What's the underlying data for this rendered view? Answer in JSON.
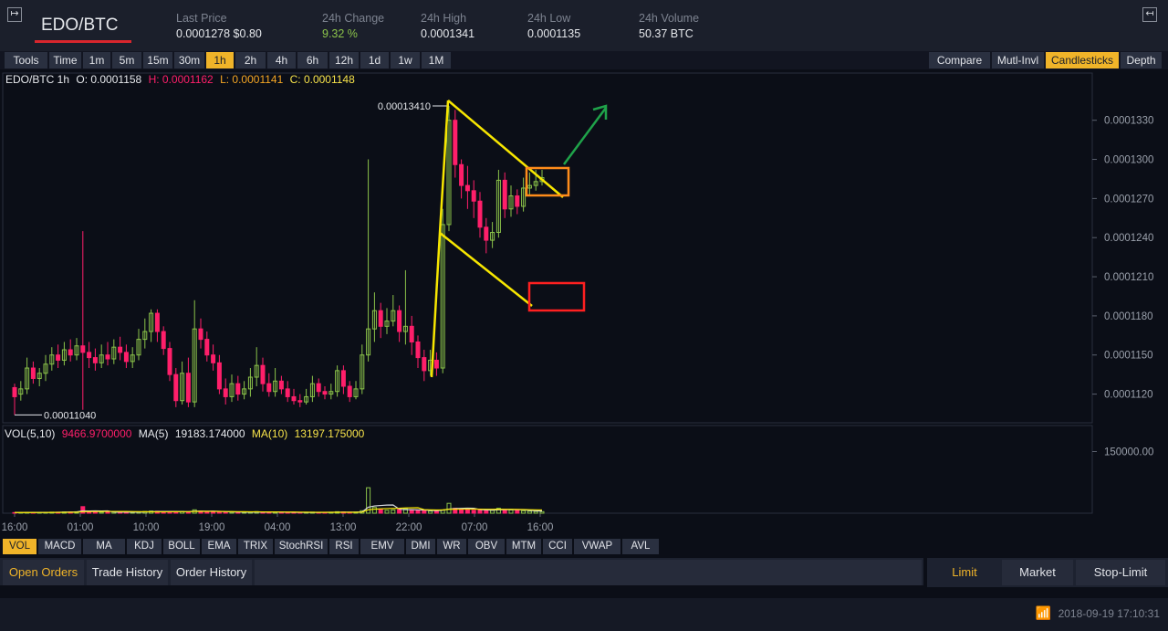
{
  "header": {
    "pair": "EDO/BTC",
    "stats": [
      {
        "label": "Last Price",
        "value": "0.0001278 $0.80"
      },
      {
        "label": "24h Change",
        "value": "9.32 %"
      },
      {
        "label": "24h High",
        "value": "0.0001341"
      },
      {
        "label": "24h Low",
        "value": "0.0001135"
      },
      {
        "label": "24h Volume",
        "value": "50.37 BTC"
      }
    ],
    "expand_icon": "expand-right-icon",
    "collapse_icon": "collapse-left-icon"
  },
  "toolbar": {
    "tools": "Tools",
    "intervals": [
      "Time",
      "1m",
      "5m",
      "15m",
      "30m",
      "1h",
      "2h",
      "4h",
      "6h",
      "12h",
      "1d",
      "1w",
      "1M"
    ],
    "active_interval": "1h",
    "views": [
      "Compare",
      "Mutl-Invl",
      "Candlesticks",
      "Depth"
    ],
    "active_view": "Candlesticks"
  },
  "ohlc": {
    "symbol": "EDO/BTC 1h",
    "open": "O: 0.0001158",
    "high": "H: 0.0001162",
    "low": "L: 0.0001141",
    "close": "C: 0.0001148"
  },
  "volume_legend": {
    "label": "VOL(5,10)",
    "vol": "9466.9700000",
    "ma5_label": "MA(5)",
    "ma5": "19183.174000",
    "ma10_label": "MA(10)",
    "ma10": "13197.175000"
  },
  "indicators": [
    "VOL",
    "MACD",
    "MA",
    "KDJ",
    "BOLL",
    "EMA",
    "TRIX",
    "StochRSI",
    "RSI",
    "EMV",
    "DMI",
    "WR",
    "OBV",
    "MTM",
    "CCI",
    "VWAP",
    "AVL"
  ],
  "active_indicator": "VOL",
  "orders": {
    "tabs": [
      "Open Orders",
      "Trade History",
      "Order History"
    ],
    "active": "Open Orders"
  },
  "order_form": {
    "tabs": [
      "Limit",
      "Market",
      "Stop-Limit"
    ],
    "active": "Limit"
  },
  "status": {
    "datetime": "2018-09-19 17:10:31",
    "wifi_icon": "wifi-icon"
  },
  "colors": {
    "up": "#8bc34a",
    "down": "#ff1f6a",
    "accent": "#f0b429",
    "annotation_yellow": "#f7e600",
    "annotation_orange": "#ff8c1a",
    "annotation_red": "#ff2020",
    "annotation_green": "#1fa34a"
  },
  "chart_data": {
    "type": "candlestick",
    "x_ticks": [
      "16:00",
      "01:00",
      "10:00",
      "19:00",
      "04:00",
      "13:00",
      "22:00",
      "07:00",
      "16:00"
    ],
    "y_ticks": [
      "0.0001330",
      "0.0001300",
      "0.0001270",
      "0.0001240",
      "0.0001210",
      "0.0001180",
      "0.0001150",
      "0.0001120"
    ],
    "ylim": [
      0.0001098,
      0.0001355
    ],
    "vol_ticks": [
      "150000.00"
    ],
    "vol_max": 200000,
    "annotations": {
      "high_label": "0.00013410",
      "low_label": "0.00011040"
    },
    "candles": [
      [
        0.0001125,
        0.0001118,
        0.0001128,
        0.0001104
      ],
      [
        0.000112,
        0.0001124,
        0.000113,
        0.0001115
      ],
      [
        0.0001124,
        0.000114,
        0.0001148,
        0.000112
      ],
      [
        0.000114,
        0.0001132,
        0.0001145,
        0.0001128
      ],
      [
        0.0001132,
        0.0001136,
        0.000114,
        0.0001126
      ],
      [
        0.0001136,
        0.0001143,
        0.000115,
        0.000113
      ],
      [
        0.0001143,
        0.000115,
        0.0001156,
        0.0001138
      ],
      [
        0.000115,
        0.0001146,
        0.0001158,
        0.000114
      ],
      [
        0.0001146,
        0.0001154,
        0.000116,
        0.0001142
      ],
      [
        0.0001154,
        0.000115,
        0.0001162,
        0.0001145
      ],
      [
        0.000115,
        0.0001157,
        0.0001163,
        0.0001146
      ],
      [
        0.0001157,
        0.0001152,
        0.0001245,
        0.0001108
      ],
      [
        0.0001152,
        0.0001148,
        0.000116,
        0.000114
      ],
      [
        0.0001148,
        0.0001144,
        0.0001155,
        0.0001138
      ],
      [
        0.0001144,
        0.000115,
        0.0001158,
        0.000114
      ],
      [
        0.000115,
        0.0001147,
        0.000116,
        0.0001142
      ],
      [
        0.0001147,
        0.0001156,
        0.0001162,
        0.0001143
      ],
      [
        0.0001156,
        0.0001152,
        0.0001164,
        0.0001146
      ],
      [
        0.0001152,
        0.0001145,
        0.0001158,
        0.000114
      ],
      [
        0.0001145,
        0.000115,
        0.0001156,
        0.000114
      ],
      [
        0.000115,
        0.0001162,
        0.000117,
        0.0001146
      ],
      [
        0.0001162,
        0.0001168,
        0.0001178,
        0.0001155
      ],
      [
        0.0001168,
        0.0001182,
        0.0001185,
        0.000116
      ],
      [
        0.0001182,
        0.0001168,
        0.0001185,
        0.000116
      ],
      [
        0.0001168,
        0.0001155,
        0.0001172,
        0.000115
      ],
      [
        0.0001155,
        0.0001135,
        0.000116,
        0.000113
      ],
      [
        0.0001135,
        0.0001115,
        0.000114,
        0.000111
      ],
      [
        0.0001115,
        0.0001136,
        0.0001145,
        0.0001112
      ],
      [
        0.0001136,
        0.0001114,
        0.0001148,
        0.000111
      ],
      [
        0.0001114,
        0.000117,
        0.0001192,
        0.000111
      ],
      [
        0.000117,
        0.0001162,
        0.0001178,
        0.0001155
      ],
      [
        0.0001162,
        0.000115,
        0.0001168,
        0.0001145
      ],
      [
        0.000115,
        0.0001144,
        0.0001158,
        0.0001138
      ],
      [
        0.0001144,
        0.0001124,
        0.000115,
        0.000112
      ],
      [
        0.0001124,
        0.0001118,
        0.0001132,
        0.0001112
      ],
      [
        0.0001118,
        0.0001128,
        0.0001135,
        0.0001114
      ],
      [
        0.0001128,
        0.000112,
        0.0001134,
        0.0001115
      ],
      [
        0.000112,
        0.0001124,
        0.000113,
        0.0001116
      ],
      [
        0.0001124,
        0.0001133,
        0.000114,
        0.0001118
      ],
      [
        0.0001133,
        0.0001142,
        0.0001156,
        0.0001126
      ],
      [
        0.0001142,
        0.0001128,
        0.0001148,
        0.0001122
      ],
      [
        0.0001128,
        0.0001122,
        0.0001136,
        0.0001118
      ],
      [
        0.0001122,
        0.000113,
        0.000114,
        0.0001118
      ],
      [
        0.000113,
        0.0001124,
        0.0001134,
        0.000112
      ],
      [
        0.0001124,
        0.0001118,
        0.000113,
        0.0001114
      ],
      [
        0.0001118,
        0.0001115,
        0.0001124,
        0.0001112
      ],
      [
        0.0001115,
        0.0001114,
        0.000112,
        0.000111
      ],
      [
        0.0001114,
        0.0001118,
        0.0001124,
        0.0001112
      ],
      [
        0.0001118,
        0.0001128,
        0.0001134,
        0.0001114
      ],
      [
        0.0001128,
        0.0001122,
        0.0001132,
        0.0001118
      ],
      [
        0.0001122,
        0.000112,
        0.0001126,
        0.0001116
      ],
      [
        0.000112,
        0.0001122,
        0.0001128,
        0.0001116
      ],
      [
        0.0001122,
        0.0001138,
        0.0001142,
        0.0001118
      ],
      [
        0.0001138,
        0.0001126,
        0.0001142,
        0.000112
      ],
      [
        0.0001126,
        0.0001118,
        0.000113,
        0.0001114
      ],
      [
        0.0001118,
        0.0001124,
        0.000113,
        0.0001116
      ],
      [
        0.0001124,
        0.000115,
        0.0001158,
        0.000112
      ],
      [
        0.000115,
        0.000117,
        0.00013,
        0.0001145
      ],
      [
        0.000117,
        0.0001184,
        0.0001198,
        0.000116
      ],
      [
        0.0001184,
        0.0001172,
        0.000119,
        0.0001163
      ],
      [
        0.0001172,
        0.0001176,
        0.0001186,
        0.0001166
      ],
      [
        0.0001176,
        0.0001184,
        0.0001196,
        0.0001172
      ],
      [
        0.0001184,
        0.0001168,
        0.0001188,
        0.000116
      ],
      [
        0.0001168,
        0.0001172,
        0.0001215,
        0.0001158
      ],
      [
        0.0001172,
        0.000116,
        0.000118,
        0.000115
      ],
      [
        0.000116,
        0.0001148,
        0.0001165,
        0.000114
      ],
      [
        0.0001148,
        0.0001138,
        0.0001154,
        0.000113
      ],
      [
        0.0001138,
        0.0001146,
        0.0001154,
        0.0001134
      ],
      [
        0.0001146,
        0.000114,
        0.0001152,
        0.0001134
      ],
      [
        0.000114,
        0.000125,
        0.0001262,
        0.0001136
      ],
      [
        0.000125,
        0.000133,
        0.0001341,
        0.0001245
      ],
      [
        0.000133,
        0.0001296,
        0.0001338,
        0.0001286
      ],
      [
        0.0001296,
        0.000128,
        0.00013,
        0.000127
      ],
      [
        0.000128,
        0.0001276,
        0.0001295,
        0.0001262
      ],
      [
        0.0001276,
        0.0001268,
        0.0001284,
        0.0001255
      ],
      [
        0.0001268,
        0.0001248,
        0.0001275,
        0.000124
      ],
      [
        0.0001248,
        0.0001238,
        0.0001255,
        0.0001228
      ],
      [
        0.0001238,
        0.0001244,
        0.0001252,
        0.0001232
      ],
      [
        0.0001244,
        0.0001284,
        0.0001292,
        0.000124
      ],
      [
        0.0001284,
        0.0001262,
        0.000129,
        0.0001255
      ],
      [
        0.0001262,
        0.0001272,
        0.000128,
        0.0001256
      ],
      [
        0.0001272,
        0.0001264,
        0.0001277,
        0.0001258
      ],
      [
        0.0001264,
        0.0001278,
        0.0001286,
        0.000126
      ],
      [
        0.0001278,
        0.000128,
        0.000129,
        0.0001272
      ],
      [
        0.000128,
        0.0001283,
        0.0001292,
        0.0001276
      ],
      [
        0.0001283,
        0.0001286,
        0.0001292,
        0.000128
      ]
    ],
    "volume": [
      1500,
      1200,
      2200,
      1600,
      1400,
      1800,
      2600,
      2400,
      3000,
      2800,
      3500,
      16000,
      3200,
      2400,
      2600,
      2800,
      3000,
      2200,
      2600,
      2400,
      3600,
      4200,
      5200,
      4800,
      3400,
      3800,
      3200,
      4500,
      3600,
      8200,
      4800,
      3800,
      3600,
      2800,
      2400,
      2600,
      2200,
      2400,
      3000,
      3800,
      2600,
      2400,
      2800,
      2200,
      2000,
      1800,
      1600,
      2000,
      2600,
      2200,
      2000,
      2200,
      3600,
      3000,
      2400,
      2600,
      6000,
      62000,
      14000,
      9000,
      7000,
      8000,
      9000,
      11000,
      8000,
      7000,
      6000,
      5200,
      5800,
      8000,
      24000,
      12000,
      9000,
      8000,
      7000,
      7500,
      8000,
      7000,
      12000,
      9000,
      8000,
      7000,
      6000,
      5000,
      4200,
      3800
    ],
    "ma5": [
      1800,
      1800,
      1800,
      1900,
      1900,
      2000,
      2100,
      2300,
      2500,
      2700,
      3100,
      5600,
      5400,
      5500,
      5400,
      5500,
      2900,
      2700,
      2700,
      2600,
      2800,
      3000,
      3600,
      4200,
      4200,
      4300,
      4100,
      3900,
      3800,
      4700,
      5100,
      4800,
      5000,
      4600,
      3700,
      3300,
      2900,
      2600,
      2600,
      2800,
      2700,
      2700,
      2900,
      2800,
      2400,
      2200,
      2100,
      1900,
      2000,
      2000,
      2100,
      2200,
      2400,
      2600,
      2600,
      2600,
      3100,
      14700,
      17700,
      18700,
      19700,
      20000,
      9800,
      8800,
      8600,
      8200,
      7600,
      6800,
      6400,
      7200,
      10200,
      11200,
      11800,
      12200,
      12000,
      8700,
      7900,
      7500,
      8300,
      8600,
      8800,
      8600,
      8400,
      7000,
      6000,
      5200
    ],
    "ma10": [
      1700,
      1700,
      1700,
      1700,
      1800,
      1800,
      1900,
      2000,
      2100,
      2200,
      2400,
      3800,
      3900,
      4000,
      4100,
      4300,
      4300,
      4200,
      4100,
      4000,
      3800,
      3600,
      3400,
      3400,
      3400,
      3500,
      3600,
      3700,
      3800,
      4200,
      4400,
      4400,
      4300,
      4200,
      4000,
      3900,
      3800,
      3600,
      3500,
      3500,
      3200,
      3100,
      3000,
      2900,
      2800,
      2700,
      2600,
      2500,
      2400,
      2300,
      2300,
      2200,
      2200,
      2200,
      2300,
      2300,
      2600,
      8400,
      9800,
      10600,
      11200,
      11600,
      11900,
      12800,
      13100,
      13300,
      8600,
      8200,
      7900,
      8000,
      9500,
      9800,
      9900,
      10000,
      10000,
      9800,
      9600,
      9400,
      9800,
      9400,
      9500,
      9200,
      8900,
      8500,
      8200,
      7900
    ]
  }
}
